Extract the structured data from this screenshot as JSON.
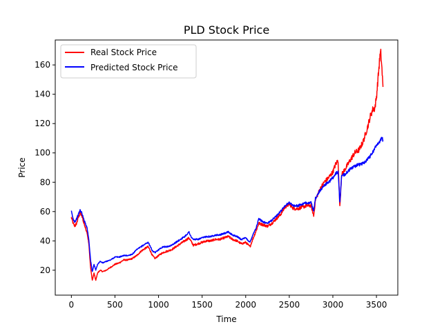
{
  "chart_data": {
    "type": "line",
    "title": "PLD Stock Price",
    "xlabel": "Time",
    "ylabel": "Price",
    "xlim": [
      -185,
      3745
    ],
    "ylim": [
      3,
      177
    ],
    "xticks": [
      0,
      500,
      1000,
      1500,
      2000,
      2500,
      3000,
      3500
    ],
    "yticks": [
      20,
      40,
      60,
      80,
      100,
      120,
      140,
      160
    ],
    "grid": false,
    "legend_position": "upper-left",
    "series": [
      {
        "name": "Real Stock Price",
        "color": "#ff0000",
        "points": [
          [
            0,
            56
          ],
          [
            20,
            52
          ],
          [
            40,
            50
          ],
          [
            60,
            52
          ],
          [
            80,
            56
          ],
          [
            100,
            59
          ],
          [
            120,
            57
          ],
          [
            140,
            53
          ],
          [
            160,
            49
          ],
          [
            180,
            46
          ],
          [
            200,
            38
          ],
          [
            220,
            22
          ],
          [
            240,
            13
          ],
          [
            260,
            18
          ],
          [
            280,
            13
          ],
          [
            300,
            18
          ],
          [
            330,
            20
          ],
          [
            360,
            19
          ],
          [
            400,
            20
          ],
          [
            450,
            22
          ],
          [
            500,
            24
          ],
          [
            550,
            25
          ],
          [
            600,
            27
          ],
          [
            650,
            27
          ],
          [
            700,
            28
          ],
          [
            750,
            30
          ],
          [
            800,
            33
          ],
          [
            850,
            35
          ],
          [
            880,
            36
          ],
          [
            900,
            34
          ],
          [
            930,
            30
          ],
          [
            960,
            28
          ],
          [
            1000,
            30
          ],
          [
            1050,
            32
          ],
          [
            1100,
            33
          ],
          [
            1150,
            34
          ],
          [
            1200,
            36
          ],
          [
            1250,
            38
          ],
          [
            1300,
            40
          ],
          [
            1350,
            42
          ],
          [
            1380,
            39
          ],
          [
            1400,
            37
          ],
          [
            1450,
            38
          ],
          [
            1500,
            39
          ],
          [
            1550,
            40
          ],
          [
            1600,
            40
          ],
          [
            1650,
            41
          ],
          [
            1700,
            41
          ],
          [
            1750,
            42
          ],
          [
            1800,
            43
          ],
          [
            1850,
            41
          ],
          [
            1900,
            40
          ],
          [
            1950,
            38
          ],
          [
            2000,
            39
          ],
          [
            2050,
            36
          ],
          [
            2080,
            41
          ],
          [
            2120,
            47
          ],
          [
            2150,
            52
          ],
          [
            2200,
            51
          ],
          [
            2250,
            50
          ],
          [
            2300,
            52
          ],
          [
            2350,
            55
          ],
          [
            2400,
            58
          ],
          [
            2450,
            63
          ],
          [
            2500,
            65
          ],
          [
            2550,
            62
          ],
          [
            2600,
            62
          ],
          [
            2650,
            63
          ],
          [
            2700,
            64
          ],
          [
            2750,
            64
          ],
          [
            2780,
            57
          ],
          [
            2800,
            68
          ],
          [
            2850,
            75
          ],
          [
            2900,
            80
          ],
          [
            2950,
            83
          ],
          [
            3000,
            87
          ],
          [
            3030,
            92
          ],
          [
            3060,
            95
          ],
          [
            3080,
            63
          ],
          [
            3100,
            85
          ],
          [
            3150,
            90
          ],
          [
            3200,
            95
          ],
          [
            3250,
            100
          ],
          [
            3300,
            102
          ],
          [
            3350,
            108
          ],
          [
            3400,
            118
          ],
          [
            3430,
            125
          ],
          [
            3460,
            130
          ],
          [
            3480,
            130
          ],
          [
            3500,
            138
          ],
          [
            3520,
            152
          ],
          [
            3540,
            166
          ],
          [
            3550,
            168
          ],
          [
            3560,
            160
          ],
          [
            3575,
            145
          ]
        ]
      },
      {
        "name": "Predicted Stock Price",
        "color": "#0000ff",
        "points": [
          [
            0,
            60
          ],
          [
            20,
            55
          ],
          [
            40,
            53
          ],
          [
            60,
            55
          ],
          [
            80,
            58
          ],
          [
            100,
            61
          ],
          [
            120,
            59
          ],
          [
            140,
            55
          ],
          [
            160,
            52
          ],
          [
            180,
            49
          ],
          [
            200,
            41
          ],
          [
            220,
            27
          ],
          [
            240,
            19
          ],
          [
            260,
            24
          ],
          [
            280,
            20
          ],
          [
            300,
            24
          ],
          [
            330,
            26
          ],
          [
            360,
            25
          ],
          [
            400,
            26
          ],
          [
            450,
            27
          ],
          [
            500,
            29
          ],
          [
            550,
            29
          ],
          [
            600,
            30
          ],
          [
            650,
            30
          ],
          [
            700,
            31
          ],
          [
            750,
            34
          ],
          [
            800,
            36
          ],
          [
            850,
            38
          ],
          [
            880,
            39
          ],
          [
            900,
            37
          ],
          [
            930,
            33
          ],
          [
            960,
            32
          ],
          [
            1000,
            34
          ],
          [
            1050,
            36
          ],
          [
            1100,
            36
          ],
          [
            1150,
            37
          ],
          [
            1200,
            39
          ],
          [
            1250,
            41
          ],
          [
            1300,
            43
          ],
          [
            1350,
            46
          ],
          [
            1380,
            42
          ],
          [
            1400,
            41
          ],
          [
            1450,
            41
          ],
          [
            1500,
            42
          ],
          [
            1550,
            43
          ],
          [
            1600,
            43
          ],
          [
            1650,
            44
          ],
          [
            1700,
            44
          ],
          [
            1750,
            45
          ],
          [
            1800,
            46
          ],
          [
            1850,
            44
          ],
          [
            1900,
            43
          ],
          [
            1950,
            41
          ],
          [
            2000,
            42
          ],
          [
            2050,
            39
          ],
          [
            2080,
            44
          ],
          [
            2120,
            49
          ],
          [
            2150,
            55
          ],
          [
            2200,
            53
          ],
          [
            2250,
            52
          ],
          [
            2300,
            54
          ],
          [
            2350,
            57
          ],
          [
            2400,
            60
          ],
          [
            2450,
            64
          ],
          [
            2500,
            66
          ],
          [
            2550,
            64
          ],
          [
            2600,
            64
          ],
          [
            2650,
            65
          ],
          [
            2700,
            66
          ],
          [
            2750,
            66
          ],
          [
            2780,
            60
          ],
          [
            2800,
            69
          ],
          [
            2850,
            74
          ],
          [
            2900,
            78
          ],
          [
            2950,
            80
          ],
          [
            3000,
            83
          ],
          [
            3030,
            86
          ],
          [
            3060,
            87
          ],
          [
            3080,
            66
          ],
          [
            3100,
            84
          ],
          [
            3150,
            86
          ],
          [
            3200,
            89
          ],
          [
            3250,
            91
          ],
          [
            3300,
            92
          ],
          [
            3350,
            93
          ],
          [
            3400,
            96
          ],
          [
            3430,
            98
          ],
          [
            3460,
            101
          ],
          [
            3480,
            103
          ],
          [
            3500,
            105
          ],
          [
            3520,
            107
          ],
          [
            3540,
            108
          ],
          [
            3560,
            110
          ],
          [
            3575,
            109
          ]
        ]
      }
    ]
  }
}
